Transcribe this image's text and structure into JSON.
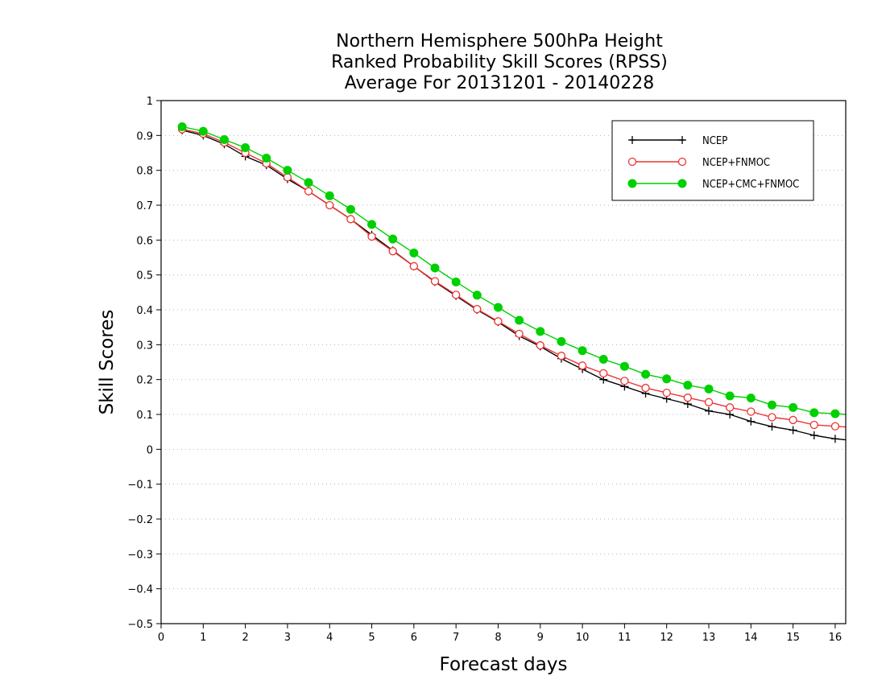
{
  "chart_data": {
    "type": "line",
    "title": [
      "Northern Hemisphere 500hPa Height",
      "Ranked Probability Skill Scores (RPSS)",
      "Average For 20131201 - 20140228"
    ],
    "xlabel": "Forecast days",
    "ylabel": "Skill Scores",
    "xlim": [
      0,
      16.25
    ],
    "ylim": [
      -0.5,
      1
    ],
    "x_ticks": [
      0,
      1,
      2,
      3,
      4,
      5,
      6,
      7,
      8,
      9,
      10,
      11,
      12,
      13,
      14,
      15,
      16
    ],
    "y_ticks": [
      -0.5,
      -0.4,
      -0.3,
      -0.2,
      -0.1,
      0,
      0.1,
      0.2,
      0.3,
      0.4,
      0.5,
      0.6,
      0.7,
      0.8,
      0.9,
      1
    ],
    "y_tick_labels": [
      "−0.5",
      "−0.4",
      "−0.3",
      "−0.2",
      "−0.1",
      "0",
      "0.1",
      "0.2",
      "0.3",
      "0.4",
      "0.5",
      "0.6",
      "0.7",
      "0.8",
      "0.9",
      "1"
    ],
    "grid": "horizontal dotted",
    "legend_position": "top-right",
    "x": [
      0.5,
      1,
      1.5,
      2,
      2.5,
      3,
      3.5,
      4,
      4.5,
      5,
      5.5,
      6,
      6.5,
      7,
      7.5,
      8,
      8.5,
      9,
      9.5,
      10,
      10.5,
      11,
      11.5,
      12,
      12.5,
      13,
      13.5,
      14,
      14.5,
      15,
      15.5,
      16,
      16.25
    ],
    "series": [
      {
        "name": "NCEP",
        "color": "#000000",
        "marker": "plus",
        "values": [
          0.915,
          0.9,
          0.875,
          0.84,
          0.815,
          0.775,
          0.74,
          0.7,
          0.66,
          0.615,
          0.57,
          0.525,
          0.48,
          0.44,
          0.4,
          0.365,
          0.325,
          0.295,
          0.26,
          0.23,
          0.2,
          0.18,
          0.16,
          0.145,
          0.13,
          0.11,
          0.1,
          0.08,
          0.065,
          0.055,
          0.04,
          0.03,
          0.027
        ]
      },
      {
        "name": "NCEP+FNMOC",
        "color": "#ee3333",
        "marker": "open-circle",
        "values": [
          0.918,
          0.905,
          0.88,
          0.85,
          0.82,
          0.78,
          0.74,
          0.7,
          0.66,
          0.61,
          0.568,
          0.525,
          0.482,
          0.443,
          0.402,
          0.367,
          0.331,
          0.298,
          0.268,
          0.24,
          0.218,
          0.196,
          0.176,
          0.162,
          0.148,
          0.135,
          0.12,
          0.108,
          0.092,
          0.084,
          0.07,
          0.066,
          0.064
        ]
      },
      {
        "name": "NCEP+CMC+FNMOC",
        "color": "#00d000",
        "marker": "filled-circle",
        "values": [
          0.925,
          0.912,
          0.888,
          0.865,
          0.835,
          0.8,
          0.765,
          0.727,
          0.688,
          0.645,
          0.603,
          0.563,
          0.52,
          0.48,
          0.442,
          0.407,
          0.37,
          0.338,
          0.309,
          0.283,
          0.258,
          0.238,
          0.215,
          0.202,
          0.184,
          0.173,
          0.153,
          0.147,
          0.127,
          0.12,
          0.105,
          0.102,
          0.1
        ]
      }
    ]
  }
}
